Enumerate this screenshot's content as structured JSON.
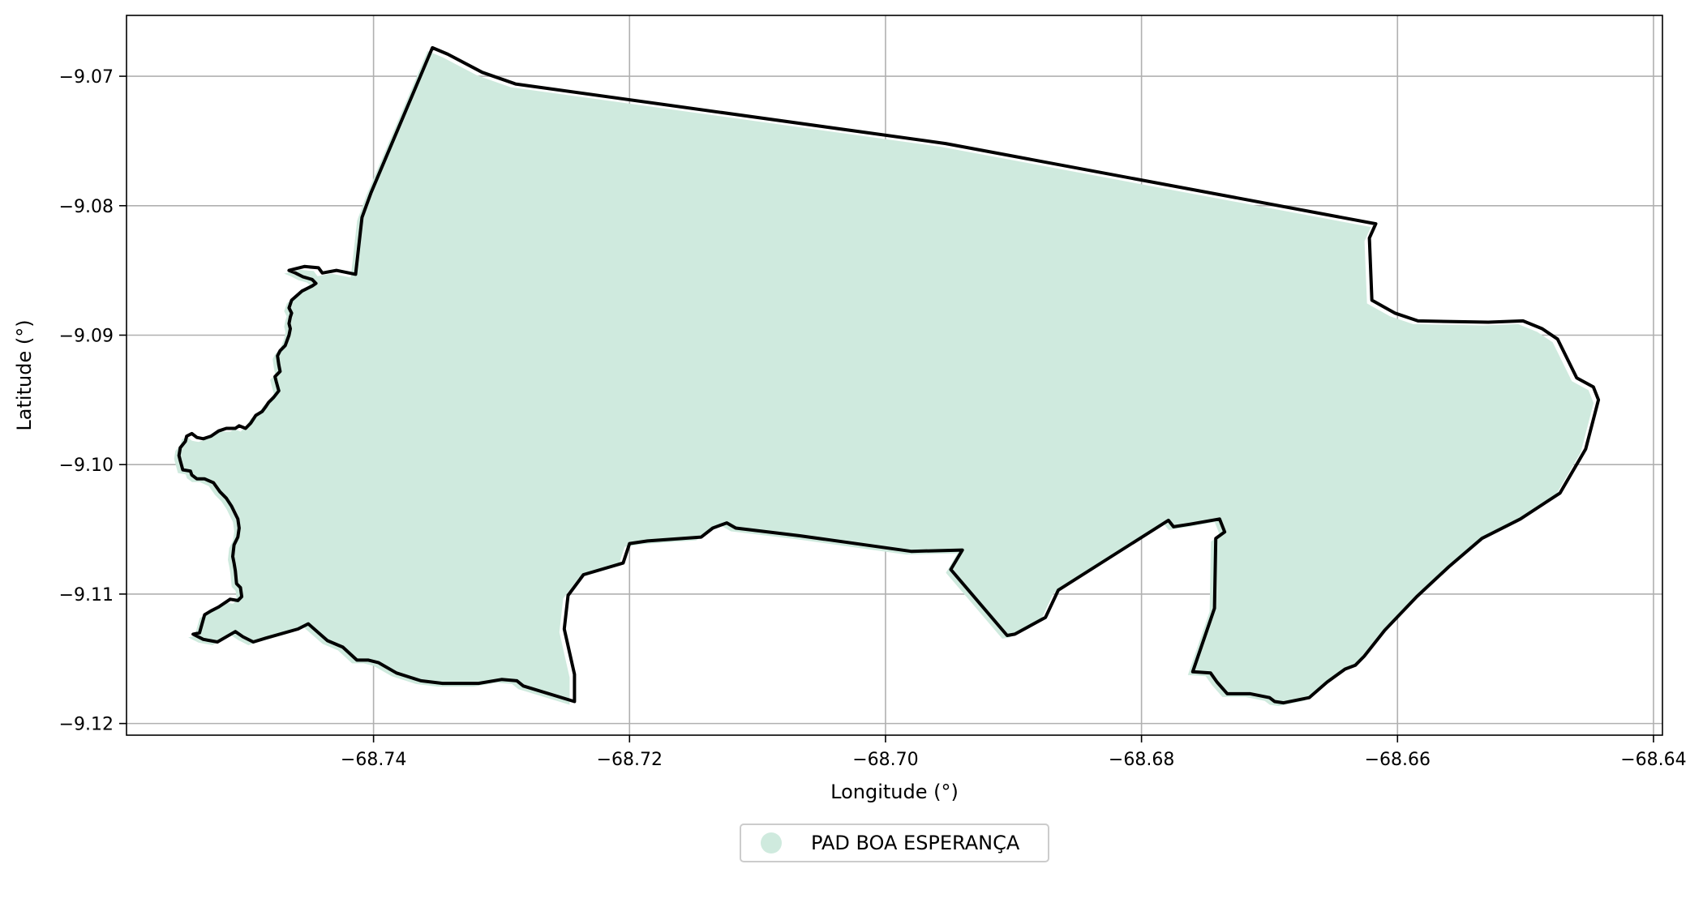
{
  "chart_data": {
    "type": "map",
    "xlabel": "Longitude (°)",
    "ylabel": "Latitude (°)",
    "xlim": [
      -68.7593,
      -68.6393
    ],
    "ylim": [
      -9.1209,
      -9.0653
    ],
    "xticks": [
      {
        "value": -68.74,
        "label": "−68.74"
      },
      {
        "value": -68.72,
        "label": "−68.72"
      },
      {
        "value": -68.7,
        "label": "−68.70"
      },
      {
        "value": -68.68,
        "label": "−68.68"
      },
      {
        "value": -68.66,
        "label": "−68.66"
      },
      {
        "value": -68.64,
        "label": "−68.64"
      }
    ],
    "yticks": [
      {
        "value": -9.07,
        "label": "−9.07"
      },
      {
        "value": -9.08,
        "label": "−9.08"
      },
      {
        "value": -9.09,
        "label": "−9.09"
      },
      {
        "value": -9.1,
        "label": "−9.10"
      },
      {
        "value": -9.11,
        "label": "−9.11"
      },
      {
        "value": -9.12,
        "label": "−9.12"
      }
    ],
    "grid": true,
    "legend_position": "bottom-center",
    "series": [
      {
        "name": "PAD BOA ESPERANÇA",
        "fill_color": "#cfeade",
        "outline_color": "#000000",
        "outline_coords": [
          [
            -68.7354,
            -9.0678
          ],
          [
            -68.7342,
            -9.0683
          ],
          [
            -68.7315,
            -9.0697
          ],
          [
            -68.7289,
            -9.0706
          ],
          [
            -68.6953,
            -9.0752
          ],
          [
            -68.6617,
            -9.0814
          ],
          [
            -68.6622,
            -9.0825
          ],
          [
            -68.662,
            -9.0873
          ],
          [
            -68.6602,
            -9.0883
          ],
          [
            -68.6584,
            -9.0889
          ],
          [
            -68.6529,
            -9.089
          ],
          [
            -68.6502,
            -9.0889
          ],
          [
            -68.6487,
            -9.0895
          ],
          [
            -68.6475,
            -9.0903
          ],
          [
            -68.646,
            -9.0933
          ],
          [
            -68.6447,
            -9.094
          ],
          [
            -68.6443,
            -9.095
          ],
          [
            -68.6453,
            -9.0988
          ],
          [
            -68.6473,
            -9.1022
          ],
          [
            -68.6504,
            -9.1042
          ],
          [
            -68.6534,
            -9.1057
          ],
          [
            -68.656,
            -9.1079
          ],
          [
            -68.6585,
            -9.1102
          ],
          [
            -68.661,
            -9.1128
          ],
          [
            -68.6626,
            -9.1148
          ],
          [
            -68.6633,
            -9.1155
          ],
          [
            -68.6641,
            -9.1158
          ],
          [
            -68.6655,
            -9.1168
          ],
          [
            -68.6669,
            -9.118
          ],
          [
            -68.6689,
            -9.1184
          ],
          [
            -68.6696,
            -9.1183
          ],
          [
            -68.67,
            -9.118
          ],
          [
            -68.6715,
            -9.1177
          ],
          [
            -68.6733,
            -9.1177
          ],
          [
            -68.6741,
            -9.1168
          ],
          [
            -68.6746,
            -9.1161
          ],
          [
            -68.676,
            -9.116
          ],
          [
            -68.6743,
            -9.1111
          ],
          [
            -68.6742,
            -9.1057
          ],
          [
            -68.6735,
            -9.1052
          ],
          [
            -68.6739,
            -9.1042
          ],
          [
            -68.6762,
            -9.1046
          ],
          [
            -68.6775,
            -9.1048
          ],
          [
            -68.6779,
            -9.1043
          ],
          [
            -68.6865,
            -9.1097
          ],
          [
            -68.6875,
            -9.1118
          ],
          [
            -68.6899,
            -9.1131
          ],
          [
            -68.6905,
            -9.1132
          ],
          [
            -68.6949,
            -9.1081
          ],
          [
            -68.694,
            -9.1066
          ],
          [
            -68.698,
            -9.1067
          ],
          [
            -68.7067,
            -9.1055
          ],
          [
            -68.7117,
            -9.1049
          ],
          [
            -68.7124,
            -9.1045
          ],
          [
            -68.7135,
            -9.1049
          ],
          [
            -68.7144,
            -9.1056
          ],
          [
            -68.7186,
            -9.1059
          ],
          [
            -68.72,
            -9.1061
          ],
          [
            -68.7205,
            -9.1076
          ],
          [
            -68.7236,
            -9.1085
          ],
          [
            -68.7248,
            -9.1101
          ],
          [
            -68.7251,
            -9.1127
          ],
          [
            -68.7243,
            -9.1162
          ],
          [
            -68.7243,
            -9.1183
          ],
          [
            -68.7283,
            -9.1171
          ],
          [
            -68.7288,
            -9.1167
          ],
          [
            -68.73,
            -9.1166
          ],
          [
            -68.7318,
            -9.1169
          ],
          [
            -68.7346,
            -9.1169
          ],
          [
            -68.7363,
            -9.1167
          ],
          [
            -68.7382,
            -9.1161
          ],
          [
            -68.7396,
            -9.1153
          ],
          [
            -68.7404,
            -9.1151
          ],
          [
            -68.7413,
            -9.1151
          ],
          [
            -68.7424,
            -9.1141
          ],
          [
            -68.7436,
            -9.1136
          ],
          [
            -68.7451,
            -9.1123
          ],
          [
            -68.7459,
            -9.1127
          ],
          [
            -68.7484,
            -9.1134
          ],
          [
            -68.7494,
            -9.1137
          ],
          [
            -68.7502,
            -9.1133
          ],
          [
            -68.7508,
            -9.1129
          ],
          [
            -68.7522,
            -9.1137
          ],
          [
            -68.7533,
            -9.1135
          ],
          [
            -68.7541,
            -9.1131
          ],
          [
            -68.7536,
            -9.113
          ],
          [
            -68.7532,
            -9.1116
          ],
          [
            -68.7527,
            -9.1113
          ],
          [
            -68.7521,
            -9.111
          ],
          [
            -68.7512,
            -9.1104
          ],
          [
            -68.7506,
            -9.1105
          ],
          [
            -68.7503,
            -9.1102
          ],
          [
            -68.7504,
            -9.1095
          ],
          [
            -68.7507,
            -9.1092
          ],
          [
            -68.7508,
            -9.1082
          ],
          [
            -68.7509,
            -9.1076
          ],
          [
            -68.751,
            -9.1071
          ],
          [
            -68.7509,
            -9.1062
          ],
          [
            -68.7506,
            -9.1056
          ],
          [
            -68.7505,
            -9.1049
          ],
          [
            -68.7506,
            -9.1042
          ],
          [
            -68.7511,
            -9.1032
          ],
          [
            -68.7515,
            -9.1026
          ],
          [
            -68.752,
            -9.1021
          ],
          [
            -68.7525,
            -9.1014
          ],
          [
            -68.7532,
            -9.1011
          ],
          [
            -68.7538,
            -9.1011
          ],
          [
            -68.7542,
            -9.1008
          ],
          [
            -68.7543,
            -9.1005
          ],
          [
            -68.7549,
            -9.1004
          ],
          [
            -68.7551,
            -9.0997
          ],
          [
            -68.7552,
            -9.0993
          ],
          [
            -68.7551,
            -9.0987
          ],
          [
            -68.7547,
            -9.0982
          ],
          [
            -68.7546,
            -9.0978
          ],
          [
            -68.7542,
            -9.0976
          ],
          [
            -68.7538,
            -9.0979
          ],
          [
            -68.7533,
            -9.098
          ],
          [
            -68.7527,
            -9.0978
          ],
          [
            -68.7521,
            -9.0974
          ],
          [
            -68.7515,
            -9.0972
          ],
          [
            -68.7508,
            -9.0972
          ],
          [
            -68.7505,
            -9.097
          ],
          [
            -68.75,
            -9.0972
          ],
          [
            -68.7496,
            -9.0968
          ],
          [
            -68.7492,
            -9.0962
          ],
          [
            -68.7487,
            -9.0959
          ],
          [
            -68.7484,
            -9.0955
          ],
          [
            -68.7482,
            -9.0952
          ],
          [
            -68.7478,
            -9.0948
          ],
          [
            -68.7474,
            -9.0943
          ],
          [
            -68.7476,
            -9.0936
          ],
          [
            -68.7477,
            -9.0932
          ],
          [
            -68.7473,
            -9.0928
          ],
          [
            -68.7474,
            -9.0923
          ],
          [
            -68.7475,
            -9.0916
          ],
          [
            -68.7473,
            -9.0912
          ],
          [
            -68.7469,
            -9.0908
          ],
          [
            -68.7466,
            -9.09
          ],
          [
            -68.7465,
            -9.0895
          ],
          [
            -68.7466,
            -9.0891
          ],
          [
            -68.7465,
            -9.0886
          ],
          [
            -68.7464,
            -9.0883
          ],
          [
            -68.7466,
            -9.0879
          ],
          [
            -68.7464,
            -9.0873
          ],
          [
            -68.7456,
            -9.0866
          ],
          [
            -68.7448,
            -9.0862
          ],
          [
            -68.7445,
            -9.086
          ],
          [
            -68.7448,
            -9.0857
          ],
          [
            -68.7455,
            -9.0855
          ],
          [
            -68.7461,
            -9.0852
          ],
          [
            -68.7466,
            -9.085
          ],
          [
            -68.7454,
            -9.0847
          ],
          [
            -68.7443,
            -9.0848
          ],
          [
            -68.744,
            -9.0852
          ],
          [
            -68.7429,
            -9.085
          ],
          [
            -68.7414,
            -9.0853
          ],
          [
            -68.7409,
            -9.0809
          ],
          [
            -68.7402,
            -9.079
          ],
          [
            -68.7354,
            -9.0678
          ]
        ]
      }
    ]
  },
  "legend": {
    "label": "PAD BOA ESPERANÇA",
    "marker_color": "#cfeade"
  }
}
